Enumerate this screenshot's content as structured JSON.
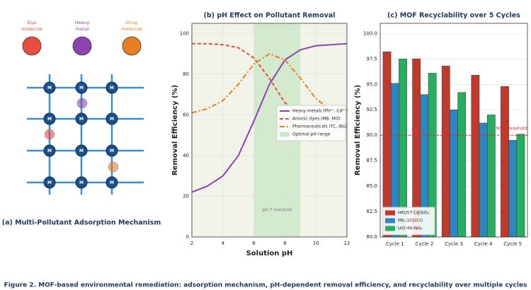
{
  "diagram": {
    "pollutants": [
      {
        "label": [
          "Dye",
          "molecule"
        ],
        "color": "#e74c3c"
      },
      {
        "label": [
          "Heavy",
          "metal"
        ],
        "color": "#8e44ad"
      },
      {
        "label": [
          "Drug",
          "molecule"
        ],
        "color": "#e67e22"
      }
    ],
    "nodes": [
      "M",
      "M",
      "M",
      "M",
      "M",
      "M",
      "M",
      "M",
      "M",
      "M",
      "M",
      "M"
    ],
    "caption": "(a) Multi-Pollutant Adsorption Mechanism"
  },
  "chart_data": [
    {
      "type": "line",
      "title": "(b) pH Effect on Pollutant Removal",
      "x_label": "Solution pH",
      "y_label": "Removal Efficiency (%)",
      "x": [
        2,
        3,
        4,
        5,
        6,
        7,
        8,
        9,
        10,
        11,
        12
      ],
      "series": [
        {
          "name": "Heavy metals (Pb²⁺, Cd²⁺)",
          "color": "#8e44ad",
          "dash": "solid",
          "values": [
            22,
            25,
            30,
            40,
            57,
            75,
            87,
            92,
            94,
            94.5,
            95
          ]
        },
        {
          "name": "Anionic dyes (MB, MO)",
          "color": "#e74c3c",
          "dash": "dashed",
          "values": [
            95,
            95,
            94.5,
            93,
            88,
            78,
            66,
            60,
            58,
            57,
            56
          ]
        },
        {
          "name": "Pharmaceuticals (TC, IBU)",
          "color": "#e67e22",
          "dash": "dashdot",
          "values": [
            61,
            63,
            67,
            75,
            85,
            90,
            87,
            78,
            68,
            62,
            60
          ]
        }
      ],
      "optimal_range": [
        6,
        9
      ],
      "optimal_label": "Optimal pH range",
      "annotation": "pH 7 (neutral)",
      "xlim": [
        2,
        12
      ],
      "xticks": [
        2,
        4,
        6,
        8,
        10,
        12
      ],
      "ylim": [
        0,
        105
      ],
      "yticks": [
        0,
        20,
        40,
        60,
        80,
        100
      ],
      "grid": true,
      "legend": "center right"
    },
    {
      "type": "bar",
      "title": "(c) MOF Recyclability over 5 Cycles",
      "y_label": "Removal Efficiency (%)",
      "categories": [
        "Cycle 1",
        "Cycle 2",
        "Cycle 3",
        "Cycle 4",
        "Cycle 5"
      ],
      "series": [
        {
          "name": "HKUST-1@SiO₂",
          "color": "#c0392b",
          "values": [
            98.2,
            97.5,
            96.8,
            95.9,
            94.8
          ]
        },
        {
          "name": "MIL-101(Cr)",
          "color": "#2e86c1",
          "values": [
            95.1,
            94.0,
            92.5,
            91.2,
            89.5
          ]
        },
        {
          "name": "UiO-66-NH₂",
          "color": "#27ae60",
          "values": [
            97.5,
            96.1,
            94.2,
            92.0,
            90.1
          ]
        }
      ],
      "threshold": {
        "value": 90,
        "label": "90% threshold"
      },
      "ylim": [
        80,
        101
      ],
      "yticks": [
        {
          "value": 80,
          "label": "80.0"
        },
        {
          "value": 82.5,
          "label": "82.5"
        },
        {
          "value": 85,
          "label": "85.0"
        },
        {
          "value": 87.5,
          "label": "87.5"
        },
        {
          "value": 90,
          "label": "90.0"
        },
        {
          "value": 92.5,
          "label": "92.5"
        },
        {
          "value": 95,
          "label": "95.0"
        },
        {
          "value": 97.5,
          "label": "97.5"
        },
        {
          "value": 100,
          "label": "100.0"
        }
      ],
      "grid": true,
      "legend": "lower left"
    }
  ],
  "caption": "Figure 2. MOF-based environmental remediation: adsorption mechanism, pH-dependent removal efficiency, and recyclability over multiple cycles"
}
